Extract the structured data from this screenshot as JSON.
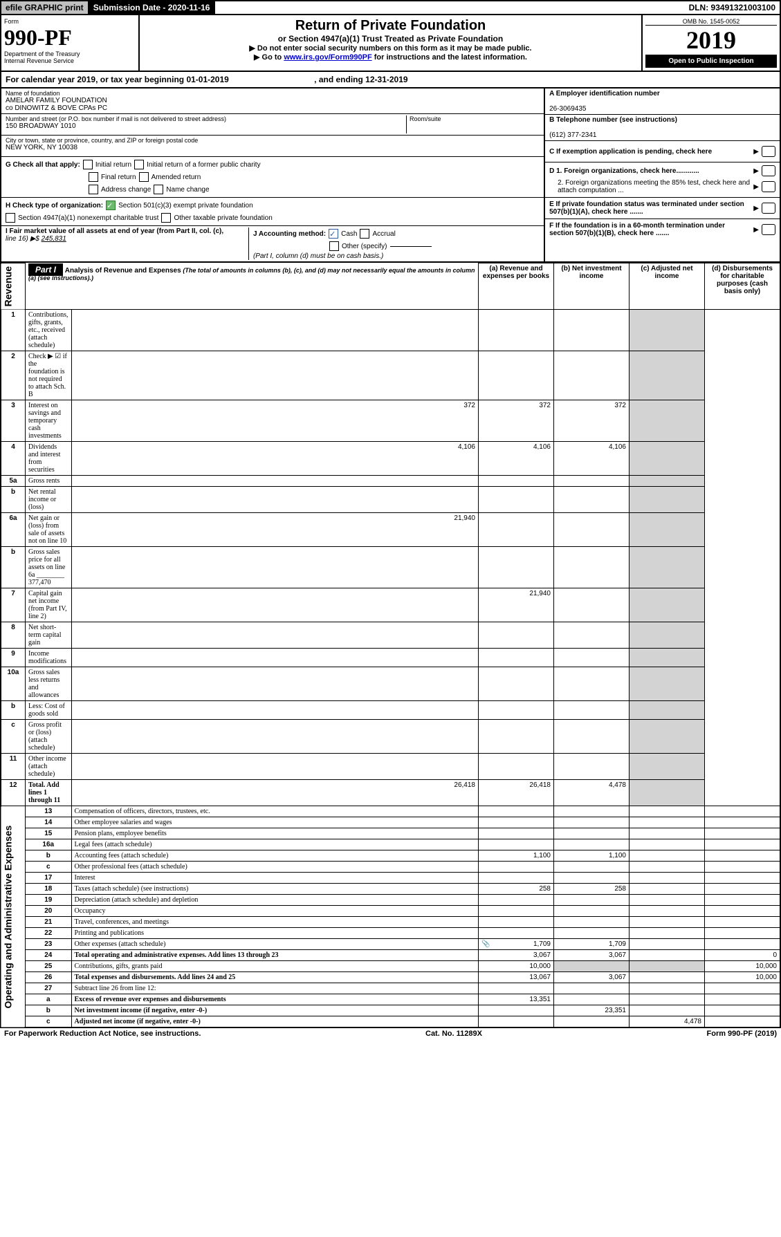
{
  "topbar": {
    "efile": "efile GRAPHIC print",
    "subdate_lbl": "Submission Date - 2020-11-16",
    "dln": "DLN: 93491321003100"
  },
  "formhead": {
    "form": "Form",
    "pf": "990-PF",
    "dept": "Department of the Treasury",
    "irs": "Internal Revenue Service",
    "title": "Return of Private Foundation",
    "subtitle": "or Section 4947(a)(1) Trust Treated as Private Foundation",
    "instr1": "▶ Do not enter social security numbers on this form as it may be made public.",
    "instr2_pre": "▶ Go to ",
    "instr2_link": "www.irs.gov/Form990PF",
    "instr2_post": " for instructions and the latest information.",
    "omb": "OMB No. 1545-0052",
    "year": "2019",
    "open": "Open to Public Inspection"
  },
  "cal": {
    "text_a": "For calendar year 2019, or tax year beginning 01-01-2019",
    "text_b": ", and ending 12-31-2019"
  },
  "entity": {
    "name_lbl": "Name of foundation",
    "name1": "AMELAR FAMILY FOUNDATION",
    "name2": "co DINOWITZ & BOVE CPAs PC",
    "addr_lbl": "Number and street (or P.O. box number if mail is not delivered to street address)",
    "room": "Room/suite",
    "addr": "150 BROADWAY 1010",
    "city_lbl": "City or town, state or province, country, and ZIP or foreign postal code",
    "city": "NEW YORK, NY  10038",
    "g": "G Check all that apply:",
    "g1": "Initial return",
    "g2": "Initial return of a former public charity",
    "g3": "Final return",
    "g4": "Amended return",
    "g5": "Address change",
    "g6": "Name change",
    "h": "H Check type of organization:",
    "h1": "Section 501(c)(3) exempt private foundation",
    "h2": "Section 4947(a)(1) nonexempt charitable trust",
    "h3": "Other taxable private foundation",
    "i_lbl": "I Fair market value of all assets at end of year (from Part II, col. (c),",
    "i_line": "line 16) ▶$  ",
    "i_val": "245,831",
    "j": "J Accounting method:",
    "j1": "Cash",
    "j2": "Accrual",
    "j3": "Other (specify)",
    "j_note": "(Part I, column (d) must be on cash basis.)",
    "a_lbl": "A Employer identification number",
    "a_val": "26-3069435",
    "b_lbl": "B Telephone number (see instructions)",
    "b_val": "(612) 377-2341",
    "c_lbl": "C If exemption application is pending, check here",
    "d1": "D 1. Foreign organizations, check here............",
    "d2": "2. Foreign organizations meeting the 85% test, check here and attach computation ...",
    "e": "E  If private foundation status was terminated under section 507(b)(1)(A), check here .......",
    "f": "F  If the foundation is in a 60-month termination under section 507(b)(1)(B), check here ......."
  },
  "part1": {
    "tab": "Part I",
    "hdr": "Analysis of Revenue and Expenses",
    "hdr_note": "(The total of amounts in columns (b), (c), and (d) may not necessarily equal the amounts in column (a) (see instructions).)",
    "col_a": "(a)   Revenue and expenses per books",
    "col_b": "(b)  Net investment income",
    "col_c": "(c)  Adjusted net income",
    "col_d": "(d)  Disbursements for charitable purposes (cash basis only)",
    "rev_lbl": "Revenue",
    "oae_lbl": "Operating and Administrative Expenses"
  },
  "rows": [
    {
      "n": "1",
      "d": "Contributions, gifts, grants, etc., received (attach schedule)"
    },
    {
      "n": "2",
      "d": "Check ▶ ☑ if the foundation is not required to attach Sch. B"
    },
    {
      "n": "3",
      "d": "Interest on savings and temporary cash investments",
      "a": "372",
      "b": "372",
      "c": "372"
    },
    {
      "n": "4",
      "d": "Dividends and interest from securities",
      "a": "4,106",
      "b": "4,106",
      "c": "4,106"
    },
    {
      "n": "5a",
      "d": "Gross rents"
    },
    {
      "n": "b",
      "d": "Net rental income or (loss)"
    },
    {
      "n": "6a",
      "d": "Net gain or (loss) from sale of assets not on line 10",
      "a": "21,940"
    },
    {
      "n": "b",
      "d": "Gross sales price for all assets on line 6a ________ 377,470"
    },
    {
      "n": "7",
      "d": "Capital gain net income (from Part IV, line 2)",
      "b": "21,940"
    },
    {
      "n": "8",
      "d": "Net short-term capital gain"
    },
    {
      "n": "9",
      "d": "Income modifications"
    },
    {
      "n": "10a",
      "d": "Gross sales less returns and allowances"
    },
    {
      "n": "b",
      "d": "Less: Cost of goods sold"
    },
    {
      "n": "c",
      "d": "Gross profit or (loss) (attach schedule)"
    },
    {
      "n": "11",
      "d": "Other income (attach schedule)"
    },
    {
      "n": "12",
      "d": "Total. Add lines 1 through 11",
      "a": "26,418",
      "b": "26,418",
      "c": "4,478",
      "bold": true
    },
    {
      "n": "13",
      "d": "Compensation of officers, directors, trustees, etc."
    },
    {
      "n": "14",
      "d": "Other employee salaries and wages"
    },
    {
      "n": "15",
      "d": "Pension plans, employee benefits"
    },
    {
      "n": "16a",
      "d": "Legal fees (attach schedule)"
    },
    {
      "n": "b",
      "d": "Accounting fees (attach schedule)",
      "a": "1,100",
      "b": "1,100"
    },
    {
      "n": "c",
      "d": "Other professional fees (attach schedule)"
    },
    {
      "n": "17",
      "d": "Interest"
    },
    {
      "n": "18",
      "d": "Taxes (attach schedule) (see instructions)",
      "a": "258",
      "b": "258"
    },
    {
      "n": "19",
      "d": "Depreciation (attach schedule) and depletion"
    },
    {
      "n": "20",
      "d": "Occupancy"
    },
    {
      "n": "21",
      "d": "Travel, conferences, and meetings"
    },
    {
      "n": "22",
      "d": "Printing and publications"
    },
    {
      "n": "23",
      "d": "Other expenses (attach schedule)",
      "a": "1,709",
      "b": "1,709",
      "icon": true
    },
    {
      "n": "24",
      "d": "Total operating and administrative expenses. Add lines 13 through 23",
      "a": "3,067",
      "b": "3,067",
      "d_v": "0",
      "bold": true
    },
    {
      "n": "25",
      "d": "Contributions, gifts, grants paid",
      "a": "10,000",
      "d_v": "10,000"
    },
    {
      "n": "26",
      "d": "Total expenses and disbursements. Add lines 24 and 25",
      "a": "13,067",
      "b": "3,067",
      "d_v": "10,000",
      "bold": true
    },
    {
      "n": "27",
      "d": "Subtract line 26 from line 12:"
    },
    {
      "n": "a",
      "d": "Excess of revenue over expenses and disbursements",
      "a": "13,351",
      "bold": true
    },
    {
      "n": "b",
      "d": "Net investment income (if negative, enter -0-)",
      "b": "23,351",
      "bold": true
    },
    {
      "n": "c",
      "d": "Adjusted net income (if negative, enter -0-)",
      "c": "4,478",
      "bold": true
    }
  ],
  "footer": {
    "l": "For Paperwork Reduction Act Notice, see instructions.",
    "m": "Cat. No. 11289X",
    "r": "Form 990-PF (2019)"
  }
}
